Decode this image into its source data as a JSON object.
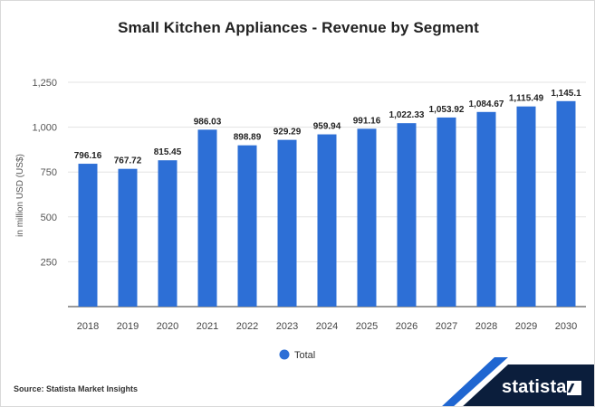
{
  "chart_data": {
    "type": "bar",
    "title": "Small Kitchen Appliances - Revenue by Segment",
    "ylabel": "in million USD (US$)",
    "xlabel": "",
    "categories": [
      "2018",
      "2019",
      "2020",
      "2021",
      "2022",
      "2023",
      "2024",
      "2025",
      "2026",
      "2027",
      "2028",
      "2029",
      "2030"
    ],
    "series": [
      {
        "name": "Total",
        "values": [
          796.16,
          767.72,
          815.45,
          986.03,
          898.89,
          929.29,
          959.94,
          991.16,
          1022.33,
          1053.92,
          1084.67,
          1115.49,
          1145.1
        ],
        "labels": [
          "796.16",
          "767.72",
          "815.45",
          "986.03",
          "898.89",
          "929.29",
          "959.94",
          "991.16",
          "1,022.33",
          "1,053.92",
          "1,084.67",
          "1,115.49",
          "1,145.1"
        ],
        "color": "#2d6fd6"
      }
    ],
    "yticks": [
      250,
      500,
      750,
      1000,
      1250
    ],
    "ytick_labels": [
      "250",
      "500",
      "750",
      "1,000",
      "1,250"
    ],
    "ylim": [
      0,
      1250
    ],
    "grid": true,
    "legend": "bottom-center"
  },
  "footer": {
    "source": "Source: Statista Market Insights",
    "brand": "statista"
  },
  "colors": {
    "bar": "#2d6fd6",
    "brand_dark": "#0b1e3c",
    "brand_accent": "#1f66d1"
  }
}
